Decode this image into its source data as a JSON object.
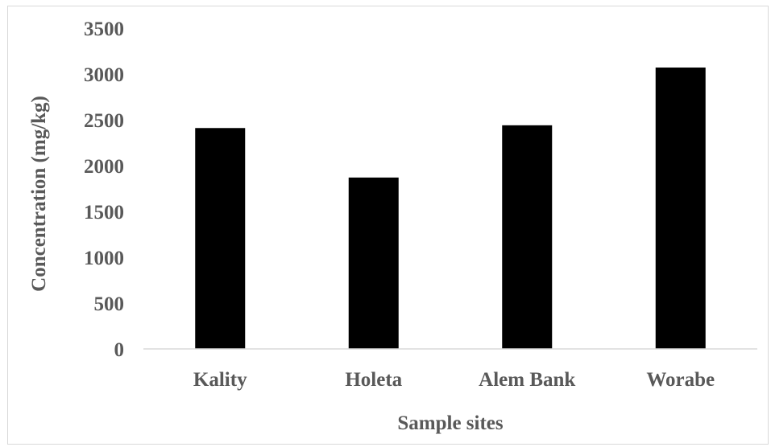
{
  "chart_data": {
    "type": "bar",
    "categories": [
      "Kality",
      "Holeta",
      "Alem Bank",
      "Worabe"
    ],
    "values": [
      2410,
      1870,
      2440,
      3070
    ],
    "title": "",
    "xlabel": "Sample sites",
    "ylabel": "Concentration (mg/kg)",
    "ylim": [
      0,
      3500
    ],
    "yticks": [
      "0",
      "500",
      "1000",
      "1500",
      "2000",
      "2500",
      "3000",
      "3500"
    ],
    "grid": false,
    "legend": "none",
    "colors": {
      "bar": "#000000",
      "axis": "#d9d9d9",
      "text": "#595959"
    }
  }
}
